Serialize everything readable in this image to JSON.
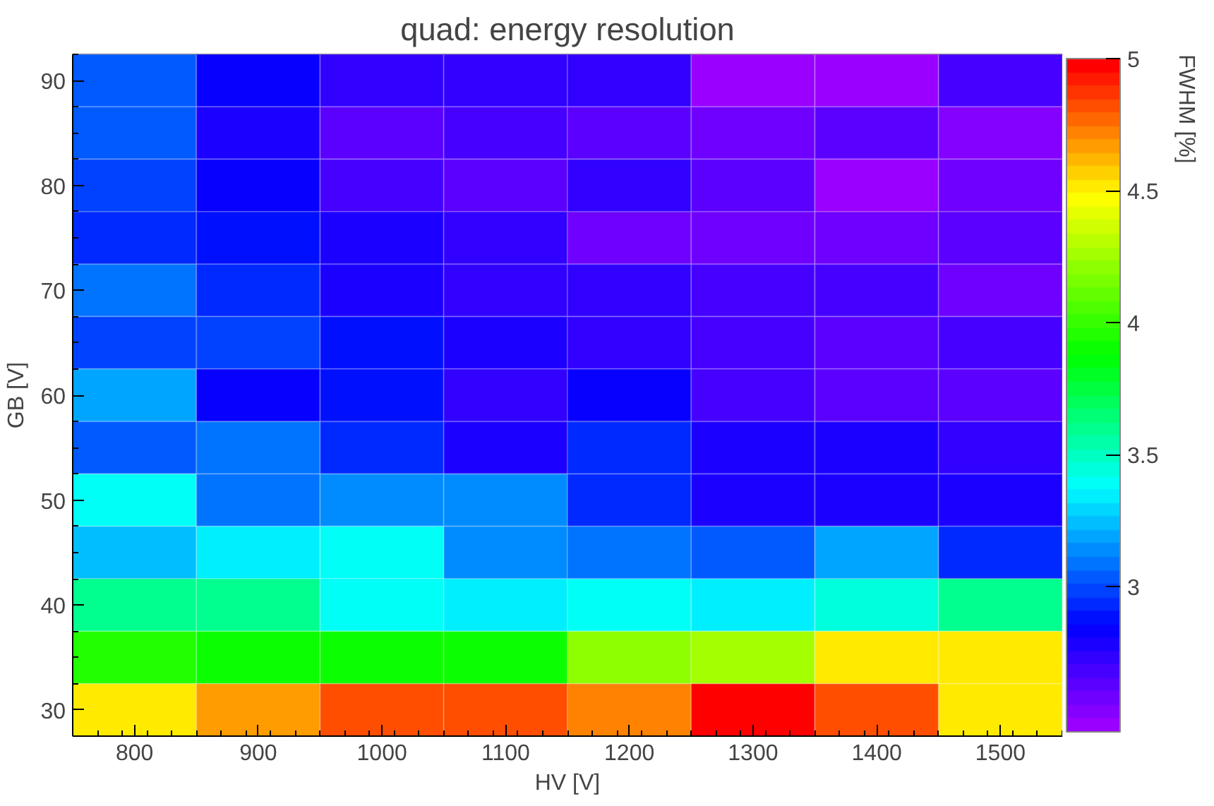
{
  "chart_data": {
    "type": "heatmap",
    "title": "quad: energy resolution",
    "xlabel": "HV [V]",
    "ylabel": "GB [V]",
    "clabel": "FWHM [%]",
    "categories": [
      "800",
      "900",
      "1000",
      "1100",
      "1200",
      "1300",
      "1400",
      "1500"
    ],
    "y_categories": [
      "90",
      null,
      "80",
      null,
      "70",
      null,
      "60",
      null,
      "50",
      null,
      "40",
      null,
      "30"
    ],
    "cells": [
      [
        3.05,
        2.83,
        2.75,
        2.72,
        2.74,
        2.5,
        2.5,
        2.68
      ],
      [
        3.05,
        2.78,
        2.62,
        2.68,
        2.63,
        2.57,
        2.64,
        2.55
      ],
      [
        3.0,
        2.83,
        2.67,
        2.62,
        2.74,
        2.64,
        2.5,
        2.57
      ],
      [
        2.95,
        2.9,
        2.78,
        2.74,
        2.57,
        2.57,
        2.57,
        2.63
      ],
      [
        3.1,
        2.95,
        2.78,
        2.75,
        2.74,
        2.7,
        2.7,
        2.56
      ],
      [
        2.98,
        2.98,
        2.87,
        2.78,
        2.75,
        2.68,
        2.63,
        2.68
      ],
      [
        3.2,
        2.83,
        2.87,
        2.72,
        2.83,
        2.68,
        2.62,
        2.61
      ],
      [
        3.05,
        3.1,
        2.95,
        2.79,
        2.95,
        2.79,
        2.79,
        2.75
      ],
      [
        3.37,
        3.1,
        3.12,
        3.15,
        2.95,
        2.79,
        2.79,
        2.79
      ],
      [
        3.24,
        3.33,
        3.37,
        3.15,
        3.11,
        3.05,
        3.21,
        2.95
      ],
      [
        3.6,
        3.6,
        3.37,
        3.33,
        3.37,
        3.32,
        3.45,
        3.6
      ],
      [
        3.93,
        3.88,
        3.88,
        3.88,
        4.2,
        4.27,
        4.52,
        4.52
      ],
      [
        4.5,
        4.65,
        4.8,
        4.8,
        4.7,
        5.0,
        4.8,
        4.52
      ]
    ],
    "clim": [
      2.45,
      5
    ],
    "cticks": [
      3,
      3.5,
      4,
      4.5,
      5
    ]
  }
}
